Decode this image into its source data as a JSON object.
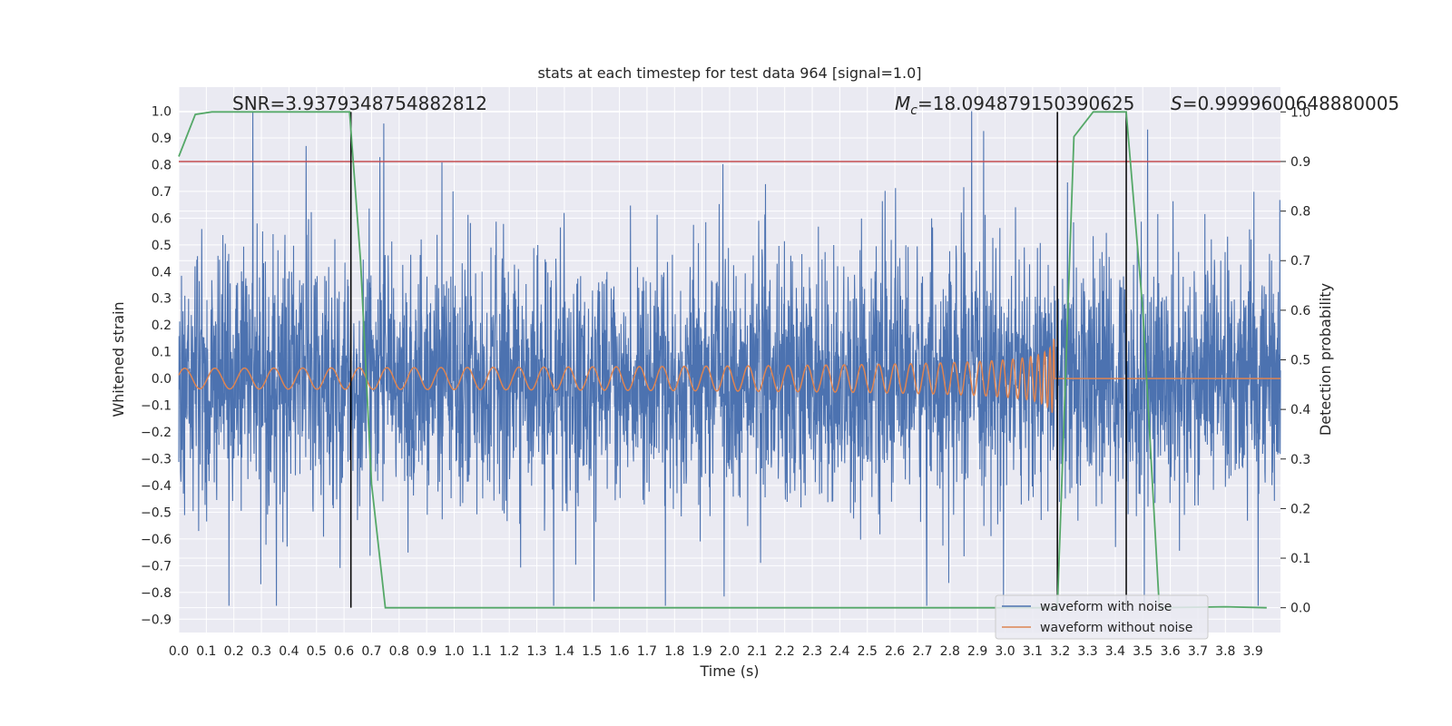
{
  "chart_data": {
    "type": "line",
    "title": "stats at each timestep for test data 964 [signal=1.0]",
    "xlabel": "Time (s)",
    "ylabel": "Whitened strain",
    "y2label": "Detection probability",
    "xlim": [
      0.0,
      4.0
    ],
    "ylim": [
      -0.95,
      1.09
    ],
    "y2lim": [
      -0.05,
      1.05
    ],
    "x_ticks": [
      "0.0",
      "0.1",
      "0.2",
      "0.3",
      "0.4",
      "0.5",
      "0.6",
      "0.7",
      "0.8",
      "0.9",
      "1.0",
      "1.1",
      "1.2",
      "1.3",
      "1.4",
      "1.5",
      "1.6",
      "1.7",
      "1.8",
      "1.9",
      "2.0",
      "2.1",
      "2.2",
      "2.3",
      "2.4",
      "2.5",
      "2.6",
      "2.7",
      "2.8",
      "2.9",
      "3.0",
      "3.1",
      "3.2",
      "3.3",
      "3.4",
      "3.5",
      "3.6",
      "3.7",
      "3.8",
      "3.9"
    ],
    "y_ticks": [
      "1.0",
      "0.9",
      "0.8",
      "0.7",
      "0.6",
      "0.5",
      "0.4",
      "0.3",
      "0.2",
      "0.1",
      "0.0",
      "−0.1",
      "−0.2",
      "−0.3",
      "−0.4",
      "−0.5",
      "−0.6",
      "−0.7",
      "−0.8",
      "−0.9"
    ],
    "y2_ticks": [
      "1.0",
      "0.9",
      "0.8",
      "0.7",
      "0.6",
      "0.5",
      "0.4",
      "0.3",
      "0.2",
      "0.1",
      "0.0"
    ],
    "grid": true,
    "legend_position": "bottom-right",
    "annotations": {
      "snr": "SNR=3.9379348754882812",
      "mc_symbol": "M",
      "mc_sub": "c",
      "mc_value": "=18.094879150390625",
      "s_symbol": "S",
      "s_value": "=0.9999600648880005"
    },
    "vertical_lines_s": [
      0.625,
      3.19,
      3.44
    ],
    "threshold_probability": 0.9,
    "series": [
      {
        "name": "waveform with noise",
        "color": "#4c72b0",
        "axis": "left",
        "description": "whitened noisy strain spanning roughly -0.85 to 1.0"
      },
      {
        "name": "waveform without noise",
        "color": "#dd8452",
        "axis": "left",
        "chirp_start_s": 0.0,
        "merger_s": 3.18,
        "peak_amplitude": 0.17
      },
      {
        "color": "#55a868",
        "axis": "right",
        "x": [
          0.0,
          0.06,
          0.12,
          0.62,
          0.66,
          0.7,
          0.75,
          3.19,
          3.25,
          3.32,
          3.44,
          3.5,
          3.56,
          3.8,
          3.95
        ],
        "values": [
          0.91,
          0.995,
          1.0,
          1.0,
          0.7,
          0.25,
          0.0,
          0.0,
          0.95,
          1.0,
          1.0,
          0.6,
          0.0,
          0.002,
          0.0
        ]
      }
    ]
  }
}
